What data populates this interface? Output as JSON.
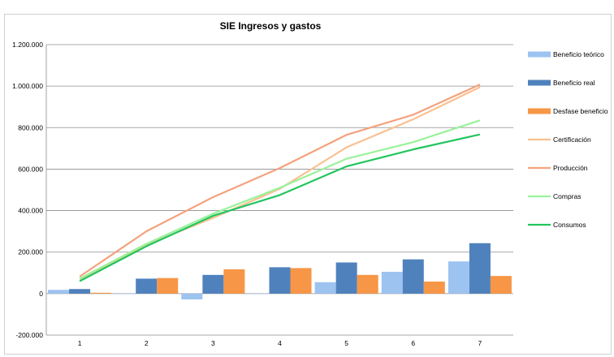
{
  "chart_data": {
    "type": "bar",
    "title": "SIE Ingresos y gastos",
    "categories": [
      "1",
      "2",
      "3",
      "4",
      "5",
      "6",
      "7"
    ],
    "ylim": [
      -200000,
      1200000
    ],
    "yticks": [
      -200000,
      0,
      200000,
      400000,
      600000,
      800000,
      1000000,
      1200000
    ],
    "ytick_labels": [
      "-200.000",
      "0",
      "200.000",
      "400.000",
      "600.000",
      "800.000",
      "1.000.000",
      "1.200.000"
    ],
    "grid": true,
    "legend_position": "right",
    "bar_series": [
      {
        "name": "Beneficio teórico",
        "color": "#9dc3f0",
        "values": [
          18000,
          -2000,
          -28000,
          0,
          55000,
          105000,
          155000
        ]
      },
      {
        "name": "Beneficio real",
        "color": "#4f81bd",
        "values": [
          22000,
          72000,
          90000,
          127000,
          150000,
          165000,
          243000
        ]
      },
      {
        "name": "Desfase beneficio",
        "color": "#f79646",
        "values": [
          4000,
          75000,
          117000,
          123000,
          90000,
          58000,
          85000
        ]
      }
    ],
    "line_series": [
      {
        "name": "Certificación",
        "color": "#fac090",
        "values": [
          70000,
          235000,
          365000,
          505000,
          705000,
          840000,
          995000
        ]
      },
      {
        "name": "Producción",
        "color": "#f4a27e",
        "values": [
          82000,
          300000,
          465000,
          605000,
          765000,
          862000,
          1008000
        ]
      },
      {
        "name": "Compras",
        "color": "#9af29a",
        "values": [
          72000,
          240000,
          385000,
          510000,
          650000,
          730000,
          835000
        ]
      },
      {
        "name": "Consumos",
        "color": "#22c55e",
        "values": [
          60000,
          228000,
          375000,
          475000,
          613000,
          695000,
          767000
        ]
      }
    ]
  }
}
